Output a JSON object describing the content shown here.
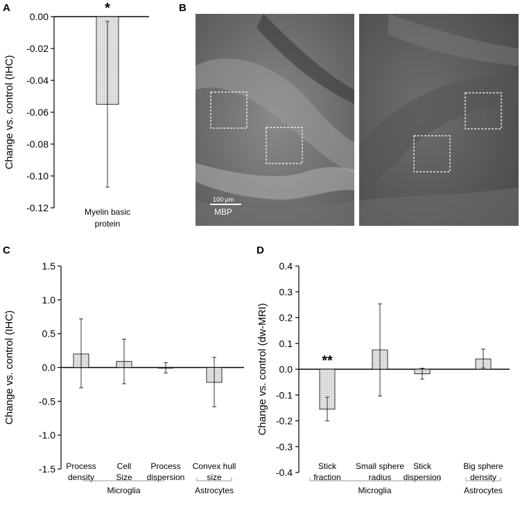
{
  "panels": {
    "A": {
      "letter": "A"
    },
    "B": {
      "letter": "B",
      "scale_label": "100 µm",
      "stain_label": "MBP"
    },
    "C": {
      "letter": "C"
    },
    "D": {
      "letter": "D"
    }
  },
  "chart_data": [
    {
      "id": "A",
      "type": "bar",
      "ylabel": "Change vs. control (IHC)",
      "ylim": [
        -0.12,
        0.0
      ],
      "yticks": [
        "0.00",
        "-0.02",
        "-0.04",
        "-0.06",
        "-0.08",
        "-0.10",
        "-0.12"
      ],
      "categories": [
        [
          "Myelin basic",
          "protein"
        ]
      ],
      "values": [
        -0.055
      ],
      "error_low": [
        -0.107
      ],
      "error_high": [
        -0.003
      ],
      "significance": [
        "*"
      ],
      "groups": []
    },
    {
      "id": "C",
      "type": "bar",
      "ylabel": "Change vs. control (IHC)",
      "ylim": [
        -1.5,
        1.5
      ],
      "yticks": [
        "1.5",
        "1.0",
        "0.5",
        "0.0",
        "-0.5",
        "-1.0",
        "-1.5"
      ],
      "categories": [
        [
          "Process",
          "density"
        ],
        [
          "Cell",
          "Size"
        ],
        [
          "Process",
          "dispersion"
        ],
        [
          "Convex hull",
          "size"
        ]
      ],
      "values": [
        0.2,
        0.09,
        0.0,
        -0.22
      ],
      "error_low": [
        -0.3,
        -0.24,
        -0.08,
        -0.58
      ],
      "error_high": [
        0.72,
        0.42,
        0.07,
        0.15
      ],
      "significance": [
        "",
        "",
        "",
        ""
      ],
      "groups": [
        {
          "label": "Microglia",
          "start": 0,
          "end": 2
        },
        {
          "label": "Astrocytes",
          "start": 3,
          "end": 3
        }
      ]
    },
    {
      "id": "D",
      "type": "bar",
      "ylabel": "Change vs. control (dw-MRI)",
      "ylim": [
        -0.4,
        0.4
      ],
      "yticks": [
        "0.4",
        "0.3",
        "0.2",
        "0.1",
        "0.0",
        "-0.1",
        "-0.2",
        "-0.3",
        "-0.4"
      ],
      "categories": [
        [
          "Stick",
          "fraction"
        ],
        [
          "Small sphere",
          "radius"
        ],
        [
          "Stick",
          "dispersion"
        ],
        [
          "Big sphere",
          "density"
        ]
      ],
      "values": [
        -0.155,
        0.075,
        -0.018,
        0.04
      ],
      "error_low": [
        -0.2,
        -0.104,
        -0.038,
        0.005
      ],
      "error_high": [
        -0.108,
        0.253,
        0.004,
        0.078
      ],
      "significance": [
        "**",
        "",
        "",
        ""
      ],
      "groups": [
        {
          "label": "Microglia",
          "start": 0,
          "end": 2
        },
        {
          "label": "Astrocytes",
          "start": 3,
          "end": 3
        }
      ]
    }
  ]
}
